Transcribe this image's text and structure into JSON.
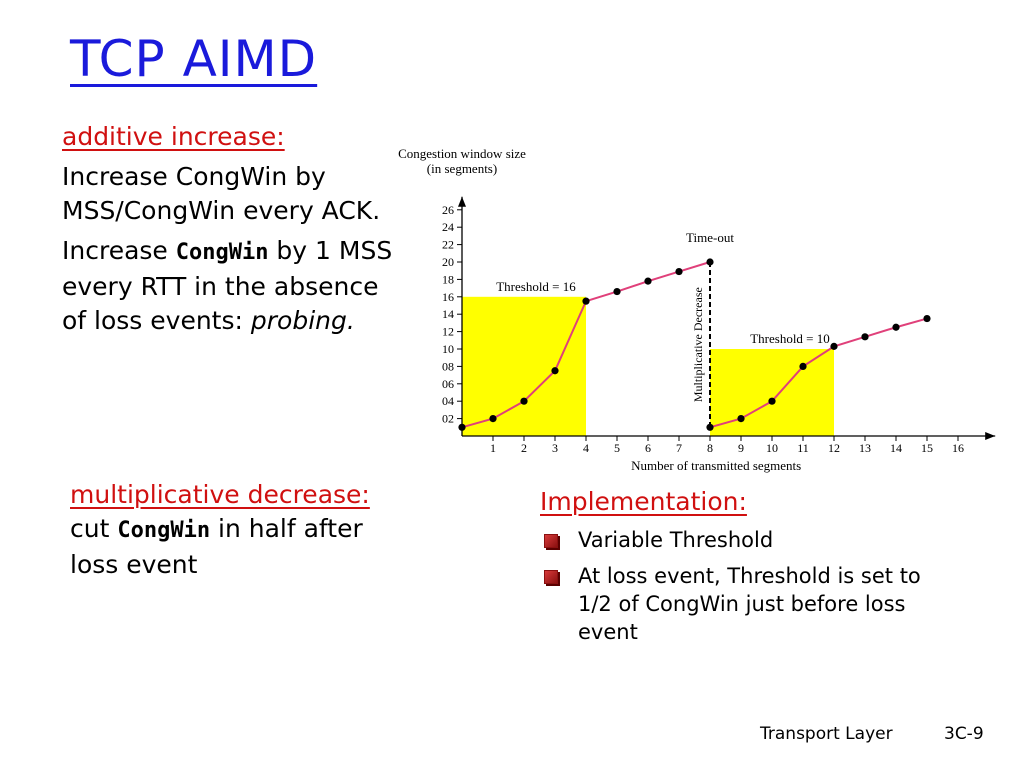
{
  "slide": {
    "title": "TCP AIMD",
    "additive_heading": "additive increase:",
    "additive_line1": "Increase CongWin by MSS/CongWin every ACK.",
    "additive_line2_pre": "Increase ",
    "additive_line2_code": "CongWin",
    "additive_line2_post": " by 1 MSS every RTT in the absence of loss events: ",
    "additive_line2_em": "probing.",
    "md_heading": "multiplicative decrease:",
    "md_text_pre": " cut ",
    "md_code": "CongWin",
    "md_text_post": " in half after loss event",
    "impl_heading": "Implementation:",
    "impl_items": [
      "Variable Threshold",
      "At loss event, Threshold is set to 1/2 of CongWin just before loss event"
    ],
    "footer_left": "Transport Layer",
    "footer_right": "3C-9"
  },
  "colors": {
    "title": "#1a1adb",
    "heading": "#d01010",
    "line": "#e0407a",
    "fill": "#ffff00"
  },
  "chart_data": {
    "type": "line",
    "title": "Congestion window size\n(in segments)",
    "xlabel": "Number of transmitted segments",
    "ylabel": "",
    "x_ticks": [
      "1",
      "2",
      "3",
      "4",
      "5",
      "6",
      "7",
      "8",
      "9",
      "10",
      "11",
      "12",
      "13",
      "14",
      "15",
      "16"
    ],
    "y_ticks": [
      "02",
      "04",
      "06",
      "08",
      "10",
      "12",
      "14",
      "16",
      "18",
      "20",
      "22",
      "24",
      "26"
    ],
    "xlim": [
      0,
      17
    ],
    "ylim": [
      0,
      27
    ],
    "series": [
      {
        "x": [
          0,
          1,
          2,
          3,
          4,
          5,
          6,
          7,
          8
        ],
        "y": [
          1,
          2,
          4,
          7.5,
          15.5,
          16.6,
          17.8,
          18.9,
          20
        ]
      },
      {
        "x": [
          8,
          9,
          10,
          11,
          12,
          13,
          14,
          15
        ],
        "y": [
          1,
          2,
          4,
          8,
          10.3,
          11.4,
          12.5,
          13.5
        ]
      }
    ],
    "threshold_regions": [
      {
        "label": "Threshold = 16",
        "x_range": [
          0,
          4
        ],
        "value": 16
      },
      {
        "label": "Threshold = 10",
        "x_range": [
          8,
          12
        ],
        "value": 10
      }
    ],
    "annotations": {
      "timeout": "Time-out",
      "decrease": "Multiplicative Decrease"
    }
  }
}
